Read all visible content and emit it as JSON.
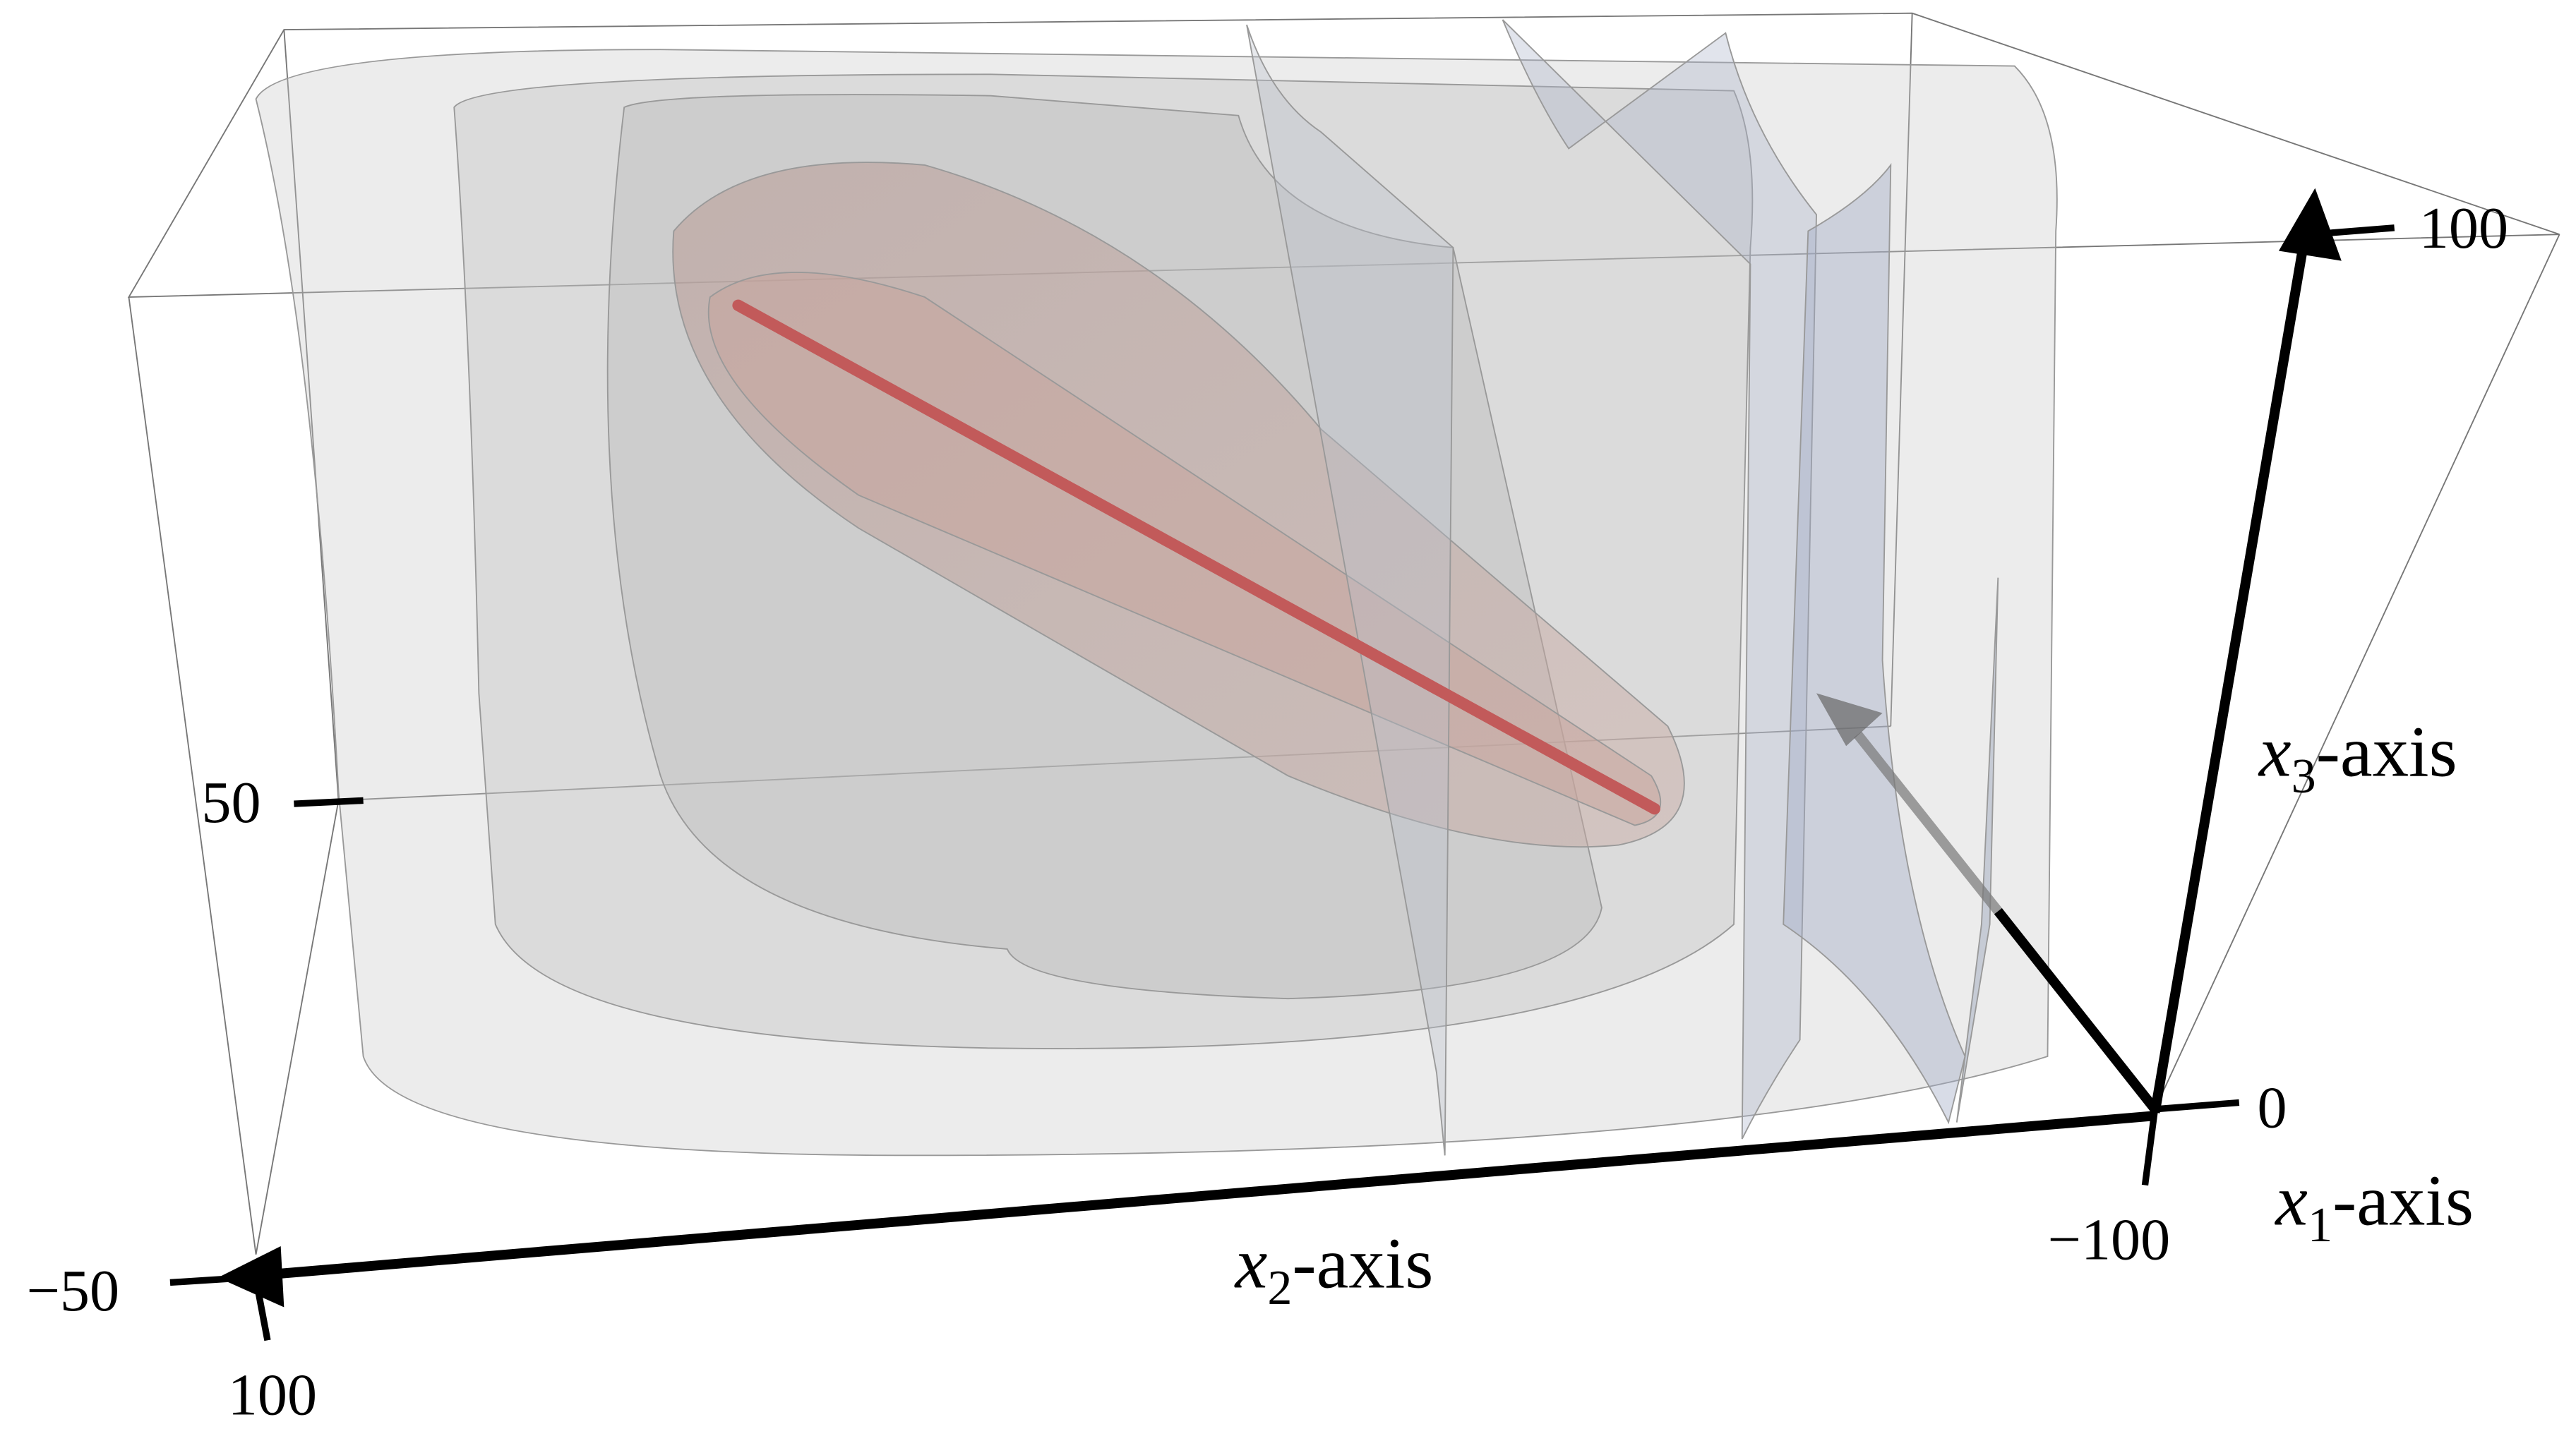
{
  "axes": {
    "x1": {
      "label": {
        "symbol": "x",
        "subscript": "1",
        "suffix": "-axis"
      }
    },
    "x2": {
      "label": {
        "symbol": "x",
        "subscript": "2",
        "suffix": "-axis"
      }
    },
    "x3": {
      "label": {
        "symbol": "x",
        "subscript": "3",
        "suffix": "-axis"
      }
    }
  },
  "tick_labels": {
    "x3_top": "100",
    "x3_mid": "50",
    "x3_origin": "0",
    "x1_near": "−100",
    "x1_far": "100",
    "x2_far": "−50"
  }
}
